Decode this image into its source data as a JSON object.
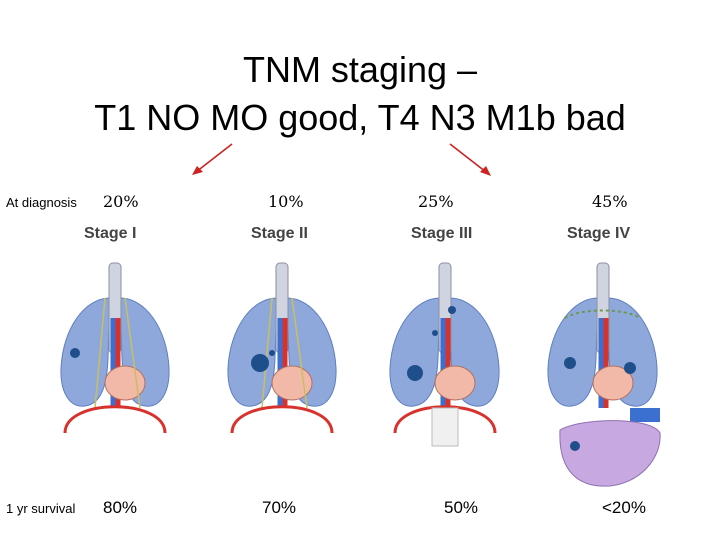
{
  "title": {
    "line1": "TNM staging –",
    "line2": "T1 NO MO good, T4 N3 M1b bad"
  },
  "rows": {
    "diagnosis_label": "At diagnosis",
    "survival_label": "1 yr survival"
  },
  "stages": [
    {
      "label": "Stage I",
      "at_diagnosis": "20%",
      "survival": "80%"
    },
    {
      "label": "Stage II",
      "at_diagnosis": "10%",
      "survival": "70%"
    },
    {
      "label": "Stage III",
      "at_diagnosis": "25%",
      "survival": "50%"
    },
    {
      "label": "Stage IV",
      "at_diagnosis": "45%",
      "survival": "<20%"
    }
  ],
  "colors": {
    "arrow": "#cc2222",
    "lung": "#8fa8dc",
    "lung_dark": "#5f7fc0",
    "tumor": "#1f4f8a",
    "heart": "#f2b8a8",
    "vessel_red": "#d8322c",
    "vessel_blue": "#3b6fd0",
    "nerve": "#c8c060",
    "trachea": "#d0d4e0",
    "liver": "#c8a8e0"
  }
}
